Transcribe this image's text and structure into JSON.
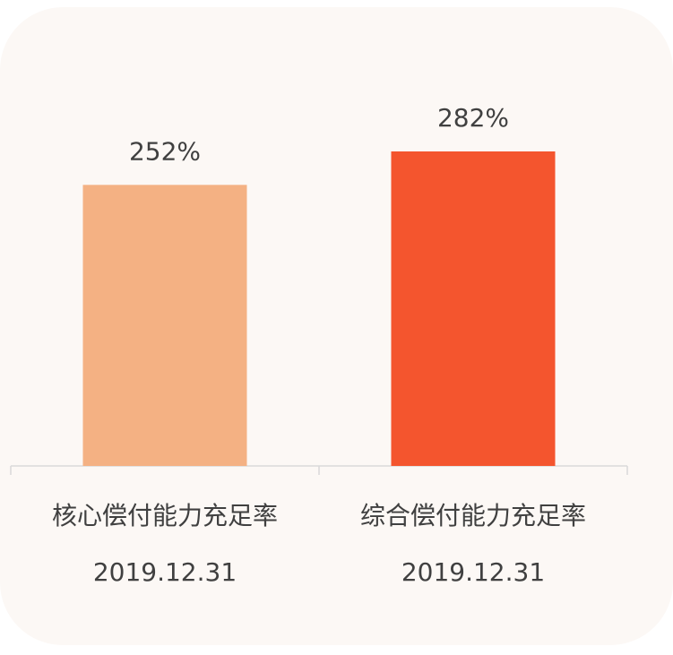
{
  "chart_data": {
    "type": "bar",
    "categories": [
      "核心偿付能力充足率",
      "综合偿付能力充足率"
    ],
    "category_dates": [
      "2019.12.31",
      "2019.12.31"
    ],
    "values": [
      252,
      282
    ],
    "value_labels": [
      "252%",
      "282%"
    ],
    "colors": [
      "#f4b183",
      "#f4552e"
    ]
  }
}
